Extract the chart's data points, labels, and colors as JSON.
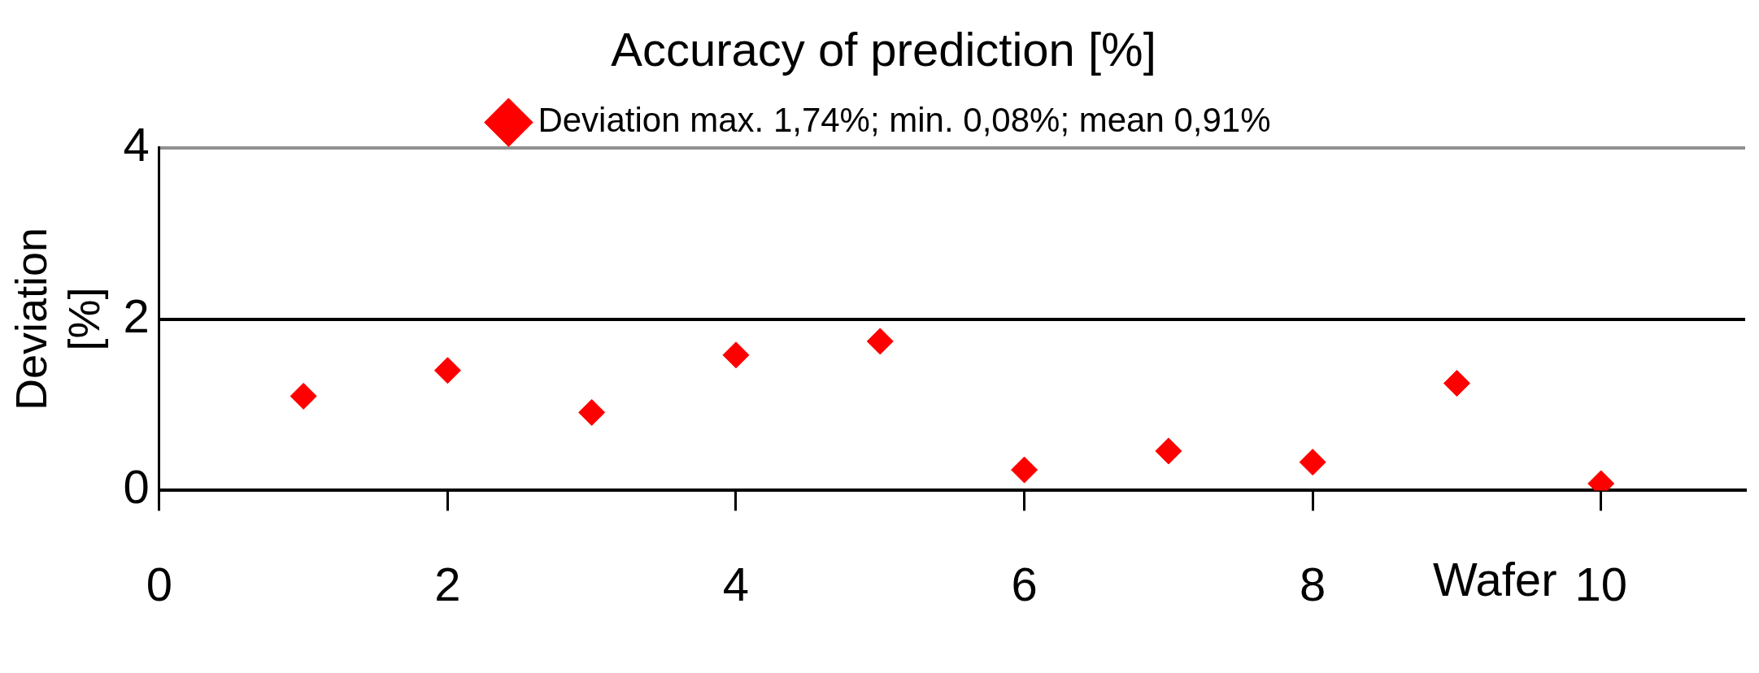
{
  "chart_data": {
    "type": "scatter",
    "title": "Accuracy of prediction [%]",
    "ylabel": "Deviation [%]",
    "x": [
      1,
      2,
      3,
      4,
      5,
      6,
      7,
      8,
      9,
      10
    ],
    "series": [
      {
        "name": "Deviation max. 1,74%; min. 0,08%; mean 0,91%",
        "color": "#ff0000",
        "values": [
          1.1,
          1.4,
          0.91,
          1.58,
          1.74,
          0.24,
          0.46,
          0.33,
          1.25,
          0.08
        ]
      }
    ],
    "xlim": [
      0,
      11
    ],
    "xticks": [
      0,
      2,
      4,
      6,
      8,
      10
    ],
    "xlabel": "Wafer",
    "ylim": [
      0,
      4
    ],
    "yticks": [
      0,
      2,
      4
    ],
    "grid": "y",
    "legend": "top",
    "marker": "diamond"
  }
}
